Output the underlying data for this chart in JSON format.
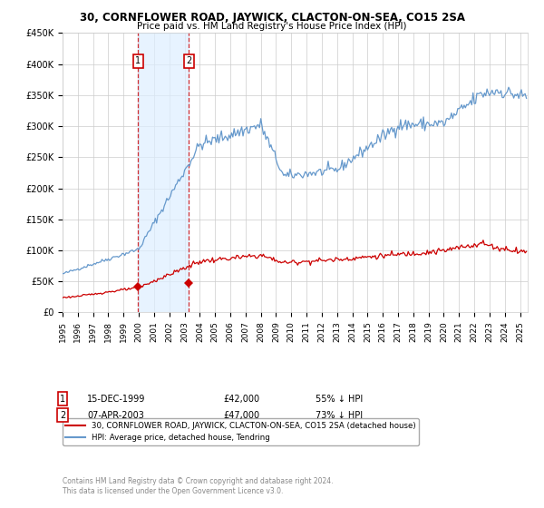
{
  "title": "30, CORNFLOWER ROAD, JAYWICK, CLACTON-ON-SEA, CO15 2SA",
  "subtitle": "Price paid vs. HM Land Registry's House Price Index (HPI)",
  "hpi_color": "#6699cc",
  "price_color": "#cc0000",
  "sale1": {
    "date": 1999.96,
    "price": 42000,
    "label": "1",
    "x_label": "15-DEC-1999",
    "pct": "55% ↓ HPI"
  },
  "sale2": {
    "date": 2003.27,
    "price": 47000,
    "label": "2",
    "x_label": "07-APR-2003",
    "pct": "73% ↓ HPI"
  },
  "shade_start": 1999.96,
  "shade_end": 2003.27,
  "ylim": [
    0,
    450000
  ],
  "xlim_start": 1995.0,
  "xlim_end": 2025.5,
  "yticks": [
    0,
    50000,
    100000,
    150000,
    200000,
    250000,
    300000,
    350000,
    400000,
    450000
  ],
  "ytick_labels": [
    "£0",
    "£50K",
    "£100K",
    "£150K",
    "£200K",
    "£250K",
    "£300K",
    "£350K",
    "£400K",
    "£450K"
  ],
  "xticks": [
    1995,
    1996,
    1997,
    1998,
    1999,
    2000,
    2001,
    2002,
    2003,
    2004,
    2005,
    2006,
    2007,
    2008,
    2009,
    2010,
    2011,
    2012,
    2013,
    2014,
    2015,
    2016,
    2017,
    2018,
    2019,
    2020,
    2021,
    2022,
    2023,
    2024,
    2025
  ],
  "footer": "Contains HM Land Registry data © Crown copyright and database right 2024.\nThis data is licensed under the Open Government Licence v3.0.",
  "legend_line1": "30, CORNFLOWER ROAD, JAYWICK, CLACTON-ON-SEA, CO15 2SA (detached house)",
  "legend_line2": "HPI: Average price, detached house, Tendring",
  "background_color": "#ffffff",
  "grid_color": "#cccccc"
}
